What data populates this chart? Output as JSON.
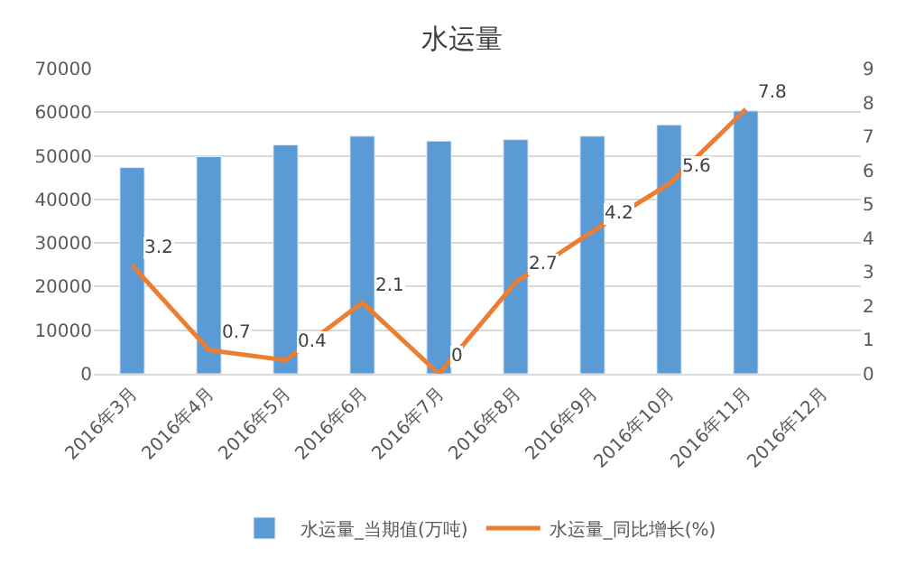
{
  "chart_data": {
    "type": "bar",
    "title": "水运量",
    "categories": [
      "2016年3月",
      "2016年4月",
      "2016年5月",
      "2016年6月",
      "2016年7月",
      "2016年8月",
      "2016年9月",
      "2016年10月",
      "2016年11月",
      "2016年12月"
    ],
    "series": [
      {
        "name": "水运量_当期值(万吨)",
        "color": "#5b9bd5",
        "values": [
          47300,
          49800,
          52500,
          54500,
          53400,
          53700,
          54500,
          57100,
          60300,
          null
        ]
      },
      {
        "name": "水运量_同比增长(%)",
        "type": "line",
        "axis": "y2",
        "color": "#ed7d31",
        "data_labels": true,
        "values": [
          3.2,
          0.7,
          0.4,
          2.1,
          0,
          2.7,
          4.2,
          5.6,
          7.8,
          null
        ]
      }
    ],
    "ylim": [
      0,
      70000
    ],
    "yticks": [
      0,
      10000,
      20000,
      30000,
      40000,
      50000,
      60000,
      70000
    ],
    "y2lim": [
      0,
      9
    ],
    "y2ticks": [
      0,
      1,
      2,
      3,
      4,
      5,
      6,
      7,
      8,
      9
    ],
    "grid": "y",
    "legend": "bottom"
  }
}
